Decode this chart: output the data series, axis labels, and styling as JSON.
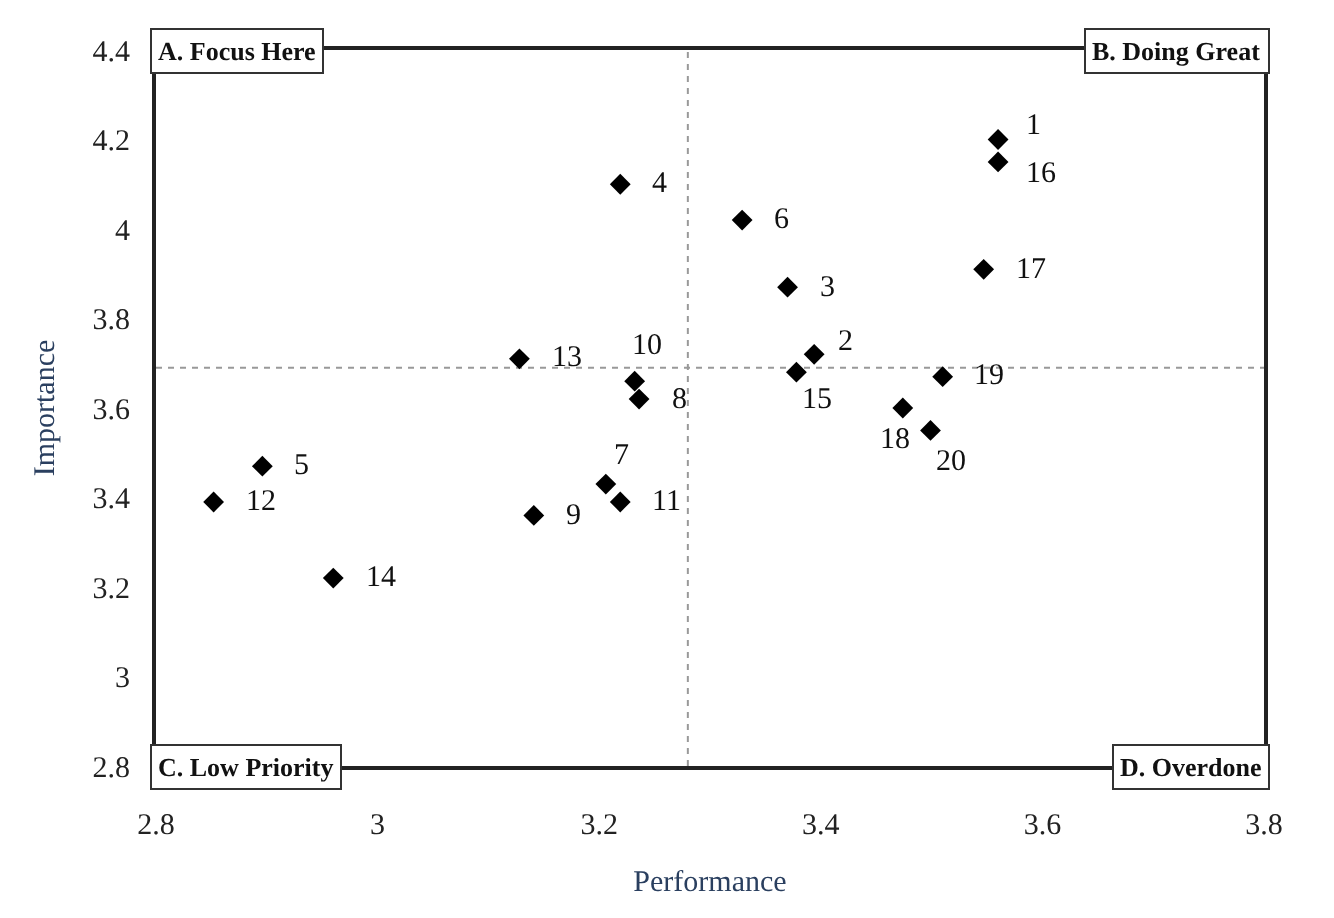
{
  "chart_data": {
    "type": "scatter",
    "xlabel": "Performance",
    "ylabel": "Importance",
    "x": [
      3.56,
      3.394,
      3.37,
      3.219,
      2.896,
      3.329,
      3.206,
      3.236,
      3.141,
      3.232,
      3.219,
      2.852,
      3.128,
      2.96,
      3.378,
      3.56,
      3.547,
      3.474,
      3.51,
      3.499
    ],
    "series": [
      {
        "color": "#000000",
        "values": [
          4.2,
          3.72,
          3.87,
          4.1,
          3.47,
          4.02,
          3.43,
          3.62,
          3.36,
          3.66,
          3.39,
          3.39,
          3.71,
          3.22,
          3.68,
          4.15,
          3.91,
          3.6,
          3.67,
          3.55
        ]
      }
    ],
    "xlim": [
      2.8,
      3.8
    ],
    "ylim": [
      2.8,
      4.4
    ],
    "xticks": [
      2.8,
      3,
      3.2,
      3.4,
      3.6,
      3.8
    ],
    "yticks": [
      2.8,
      3,
      3.2,
      3.4,
      3.6,
      3.8,
      4,
      4.2,
      4.4
    ],
    "ref_lines": [
      {
        "axis": "x",
        "value": 3.28,
        "color": "#999999",
        "line_style": "dotted"
      },
      {
        "axis": "y",
        "value": 3.69,
        "color": "#999999",
        "line_style": "dotted"
      }
    ],
    "annotations": [
      "A. Focus Here",
      "B. Doing Great",
      "C. Low Priority",
      "D. Overdone",
      {
        "text": "1",
        "x": 3.56,
        "y": 4.2
      },
      {
        "text": "2",
        "x": 3.394,
        "y": 3.72
      },
      {
        "text": "3",
        "x": 3.37,
        "y": 3.87
      },
      {
        "text": "4",
        "x": 3.219,
        "y": 4.1
      },
      {
        "text": "5",
        "x": 2.896,
        "y": 3.47
      },
      {
        "text": "6",
        "x": 3.329,
        "y": 4.02
      },
      {
        "text": "7",
        "x": 3.206,
        "y": 3.43
      },
      {
        "text": "8",
        "x": 3.236,
        "y": 3.62
      },
      {
        "text": "9",
        "x": 3.141,
        "y": 3.36
      },
      {
        "text": "10",
        "x": 3.232,
        "y": 3.66
      },
      {
        "text": "11",
        "x": 3.219,
        "y": 3.39
      },
      {
        "text": "12",
        "x": 2.852,
        "y": 3.39
      },
      {
        "text": "13",
        "x": 3.128,
        "y": 3.71
      },
      {
        "text": "14",
        "x": 2.96,
        "y": 3.22
      },
      {
        "text": "15",
        "x": 3.378,
        "y": 3.68
      },
      {
        "text": "16",
        "x": 3.56,
        "y": 4.15
      },
      {
        "text": "17",
        "x": 3.547,
        "y": 3.91
      },
      {
        "text": "18",
        "x": 3.474,
        "y": 3.6
      },
      {
        "text": "19",
        "x": 3.51,
        "y": 3.67
      },
      {
        "text": "20",
        "x": 3.499,
        "y": 3.55
      }
    ],
    "marker": "diamond"
  }
}
